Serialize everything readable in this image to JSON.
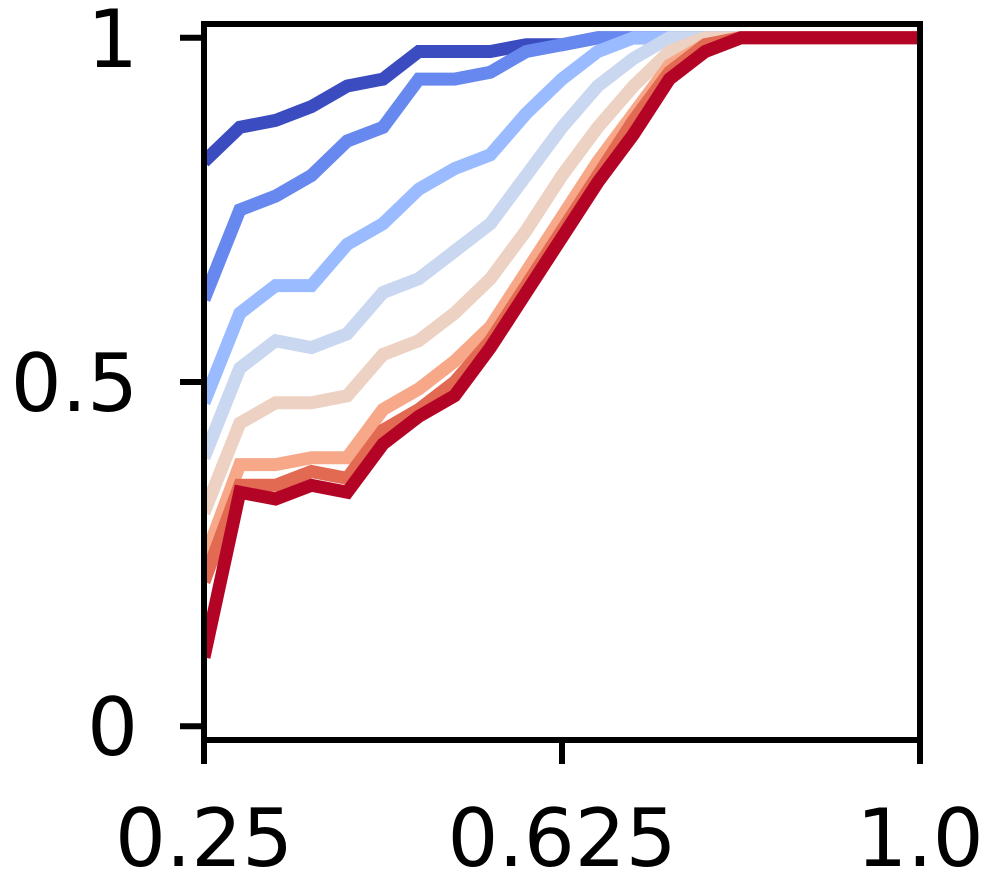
{
  "chart_data": {
    "type": "line",
    "title": "",
    "xlabel": "",
    "ylabel": "",
    "xlim": [
      0.25,
      1.0
    ],
    "ylim": [
      -0.02,
      1.02
    ],
    "x_ticks": [
      0.25,
      0.625,
      1.0
    ],
    "x_tick_labels": [
      "0.25",
      "0.625",
      "1.0"
    ],
    "y_ticks": [
      0,
      0.5,
      1
    ],
    "y_tick_labels": [
      "0",
      "0.5",
      "1"
    ],
    "grid": false,
    "legend": "none",
    "x": [
      0.25,
      0.2875,
      0.325,
      0.3625,
      0.4,
      0.4375,
      0.475,
      0.5125,
      0.55,
      0.5875,
      0.625,
      0.6625,
      0.7,
      0.7375,
      0.775,
      0.8125,
      0.85,
      0.8875,
      0.925,
      0.9625,
      1.0
    ],
    "series": [
      {
        "color": "#3b4cc0",
        "values": [
          0.82,
          0.87,
          0.88,
          0.9,
          0.93,
          0.94,
          0.98,
          0.98,
          0.98,
          0.99,
          0.99,
          1.0,
          1.0,
          1.0,
          1.0,
          1.0,
          1.0,
          1.0,
          1.0,
          1.0,
          1.0
        ]
      },
      {
        "color": "#6788ee",
        "values": [
          0.62,
          0.75,
          0.77,
          0.8,
          0.85,
          0.87,
          0.94,
          0.94,
          0.95,
          0.98,
          0.99,
          1.0,
          1.0,
          1.0,
          1.0,
          1.0,
          1.0,
          1.0,
          1.0,
          1.0,
          1.0
        ]
      },
      {
        "color": "#9abbff",
        "values": [
          0.47,
          0.6,
          0.64,
          0.64,
          0.7,
          0.73,
          0.78,
          0.81,
          0.83,
          0.89,
          0.94,
          0.98,
          1.0,
          1.0,
          1.0,
          1.0,
          1.0,
          1.0,
          1.0,
          1.0,
          1.0
        ]
      },
      {
        "color": "#c9d7f0",
        "values": [
          0.39,
          0.52,
          0.56,
          0.55,
          0.57,
          0.63,
          0.65,
          0.69,
          0.73,
          0.8,
          0.87,
          0.93,
          0.97,
          1.0,
          1.0,
          1.0,
          1.0,
          1.0,
          1.0,
          1.0,
          1.0
        ]
      },
      {
        "color": "#edd1c2",
        "values": [
          0.31,
          0.44,
          0.47,
          0.47,
          0.48,
          0.54,
          0.56,
          0.6,
          0.65,
          0.72,
          0.8,
          0.87,
          0.93,
          0.98,
          1.0,
          1.0,
          1.0,
          1.0,
          1.0,
          1.0,
          1.0
        ]
      },
      {
        "color": "#f7a889",
        "values": [
          0.24,
          0.38,
          0.38,
          0.39,
          0.39,
          0.46,
          0.49,
          0.53,
          0.58,
          0.66,
          0.74,
          0.82,
          0.89,
          0.96,
          0.99,
          1.0,
          1.0,
          1.0,
          1.0,
          1.0,
          1.0
        ]
      },
      {
        "color": "#e26952",
        "values": [
          0.21,
          0.35,
          0.35,
          0.37,
          0.36,
          0.43,
          0.46,
          0.5,
          0.56,
          0.64,
          0.72,
          0.8,
          0.88,
          0.95,
          0.99,
          1.0,
          1.0,
          1.0,
          1.0,
          1.0,
          1.0
        ]
      },
      {
        "color": "#b40426",
        "values": [
          0.1,
          0.34,
          0.33,
          0.35,
          0.34,
          0.41,
          0.45,
          0.48,
          0.55,
          0.63,
          0.71,
          0.79,
          0.86,
          0.94,
          0.98,
          1.0,
          1.0,
          1.0,
          1.0,
          1.0,
          1.0
        ]
      }
    ]
  }
}
